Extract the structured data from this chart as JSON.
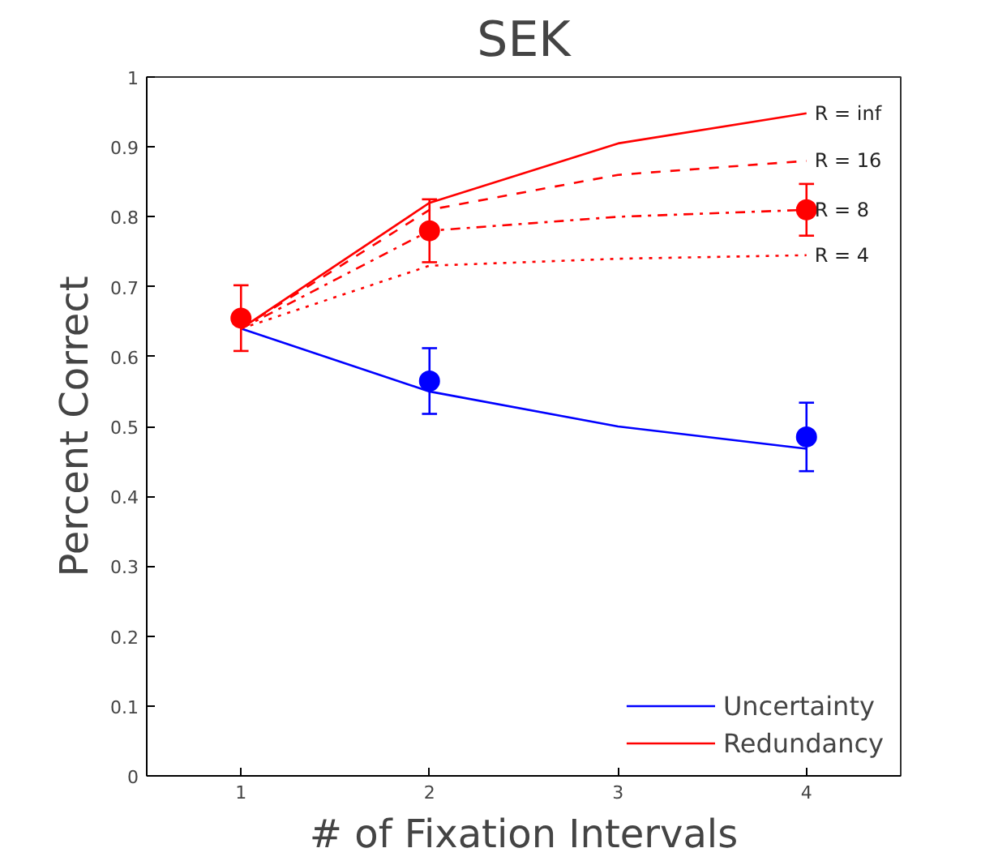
{
  "chart_data": {
    "type": "line",
    "title": "SEK",
    "xlabel": "# of Fixation Intervals",
    "ylabel": "Percent Correct",
    "xlim": [
      0.5,
      4.5
    ],
    "ylim": [
      0,
      1
    ],
    "xticks": [
      1,
      2,
      3,
      4
    ],
    "yticks": [
      0,
      0.1,
      0.2,
      0.3,
      0.4,
      0.5,
      0.6,
      0.7,
      0.8,
      0.9,
      1
    ],
    "grid": false,
    "legend": "bottom right",
    "series": [
      {
        "name": "Uncertainty",
        "color": "#0000ff",
        "line_style": "solid",
        "marker": "none",
        "x": [
          1,
          2,
          3,
          4
        ],
        "values": [
          0.64,
          0.55,
          0.5,
          0.468
        ]
      },
      {
        "name": "R = inf",
        "color": "#ff0000",
        "line_style": "solid",
        "marker": "none",
        "x": [
          1,
          2,
          3,
          4
        ],
        "values": [
          0.64,
          0.82,
          0.905,
          0.948
        ]
      },
      {
        "name": "R = 16",
        "color": "#ff0000",
        "line_style": "dashed",
        "marker": "none",
        "x": [
          1,
          2,
          3,
          4
        ],
        "values": [
          0.64,
          0.81,
          0.86,
          0.88
        ]
      },
      {
        "name": "R = 8",
        "color": "#ff0000",
        "line_style": "dashdot",
        "marker": "none",
        "x": [
          1,
          2,
          3,
          4
        ],
        "values": [
          0.64,
          0.78,
          0.8,
          0.81
        ]
      },
      {
        "name": "R = 4",
        "color": "#ff0000",
        "line_style": "dotted",
        "marker": "none",
        "x": [
          1,
          2,
          3,
          4
        ],
        "values": [
          0.64,
          0.73,
          0.74,
          0.745
        ]
      },
      {
        "color": "#0000ff",
        "type": "scatter",
        "marker": "circle",
        "x": [
          2,
          4
        ],
        "values": [
          0.565,
          0.485
        ],
        "errors": [
          0.047,
          0.049
        ]
      },
      {
        "name": "Redundancy",
        "color": "#ff0000",
        "type": "scatter",
        "marker": "circle",
        "x": [
          1,
          2,
          4
        ],
        "values": [
          0.655,
          0.78,
          0.81
        ],
        "errors": [
          0.047,
          0.045,
          0.037
        ]
      }
    ]
  }
}
